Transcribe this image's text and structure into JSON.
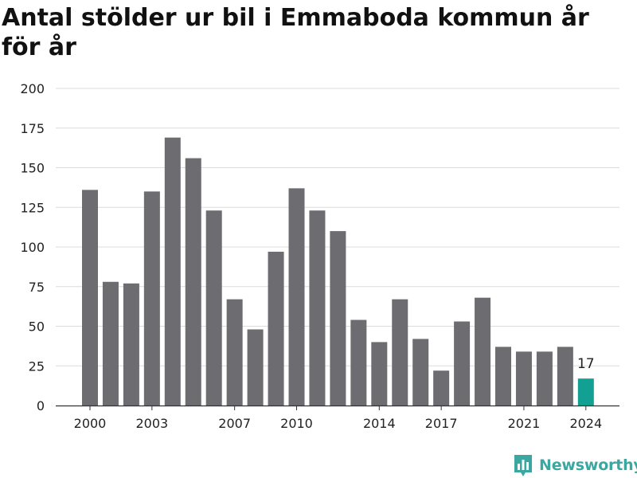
{
  "chart_data": {
    "type": "bar",
    "title": "Antal stölder ur bil i Emmaboda kommun år för år",
    "xlabel": "",
    "ylabel": "",
    "x": [
      2000,
      2001,
      2002,
      2003,
      2004,
      2005,
      2006,
      2007,
      2008,
      2009,
      2010,
      2011,
      2012,
      2013,
      2014,
      2015,
      2016,
      2017,
      2018,
      2019,
      2020,
      2021,
      2022,
      2023,
      2024
    ],
    "values": [
      136,
      78,
      77,
      135,
      169,
      156,
      123,
      67,
      48,
      97,
      137,
      123,
      110,
      54,
      40,
      67,
      42,
      22,
      53,
      68,
      37,
      34,
      34,
      37,
      17
    ],
    "x_ticks": [
      2000,
      2003,
      2007,
      2010,
      2014,
      2017,
      2021,
      2024
    ],
    "y_ticks": [
      0,
      25,
      50,
      75,
      100,
      125,
      150,
      175,
      200
    ],
    "ylim": [
      0,
      200
    ],
    "grid": true,
    "bar_color": "#6d6c71",
    "highlight_color": "#12a092",
    "highlight_index": 24,
    "data_labels": [
      {
        "index": 24,
        "text": "17"
      }
    ]
  },
  "brand": {
    "name": "Newsworthy",
    "logo_icon": "bar-chart-icon",
    "color": "#3aa7a0"
  }
}
